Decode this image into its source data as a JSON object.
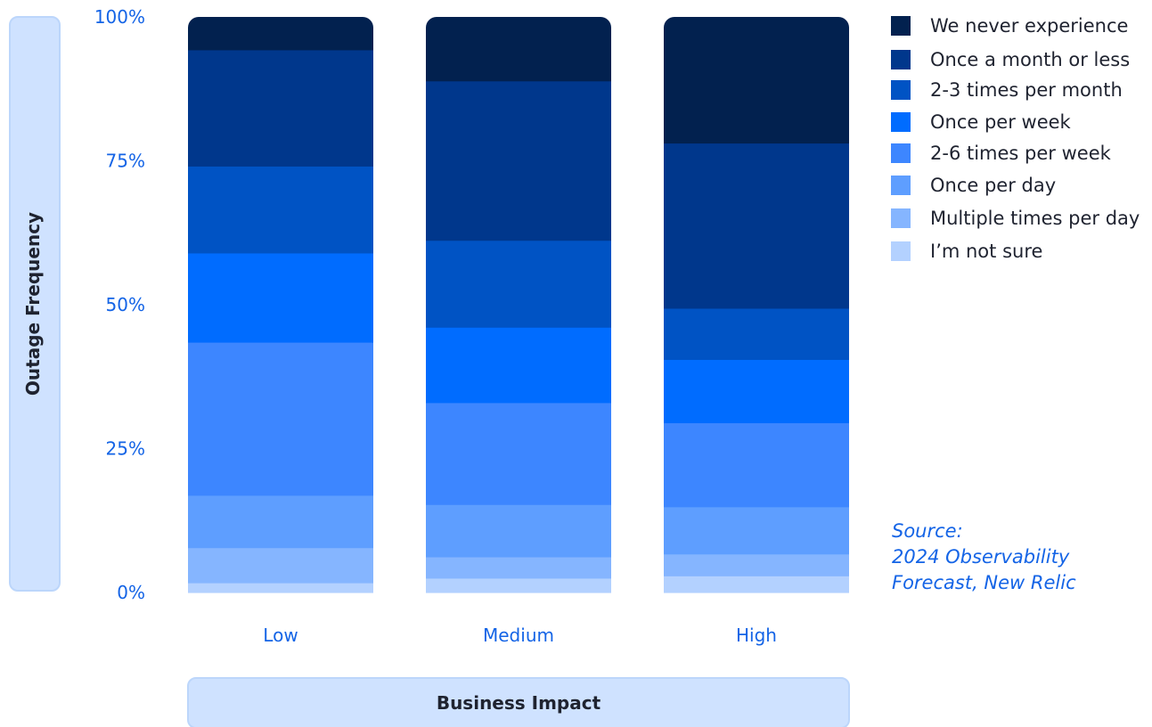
{
  "chart_data": {
    "type": "bar",
    "stacked": true,
    "percent": true,
    "xlabel": "Business Impact",
    "ylabel": "Outage Frequency",
    "categories": [
      "Low",
      "Medium",
      "High"
    ],
    "ylim": [
      0,
      100
    ],
    "yticks": [
      "0%",
      "25%",
      "50%",
      "75%",
      "100%"
    ],
    "ytick_values": [
      0,
      25,
      50,
      75,
      100
    ],
    "legend_position": "right",
    "series": [
      {
        "name": "I’m not sure",
        "color": "#b3d1ff",
        "values": [
          1.7,
          2.5,
          2.9
        ]
      },
      {
        "name": "Multiple times per day",
        "color": "#85b5ff",
        "values": [
          6.1,
          3.7,
          3.8
        ]
      },
      {
        "name": "Once per day",
        "color": "#5e9eff",
        "values": [
          9.1,
          9.1,
          8.2
        ]
      },
      {
        "name": "2-6 times per week",
        "color": "#3d86ff",
        "values": [
          26.6,
          17.7,
          14.6
        ]
      },
      {
        "name": "Once per week",
        "color": "#006cff",
        "values": [
          15.5,
          13.1,
          11.0
        ]
      },
      {
        "name": "2-3 times per month",
        "color": "#0053c4",
        "values": [
          15.1,
          15.1,
          8.9
        ]
      },
      {
        "name": "Once a month or less",
        "color": "#00378c",
        "values": [
          20.2,
          27.7,
          28.7
        ]
      },
      {
        "name": "We never experience",
        "color": "#02214f",
        "values": [
          5.7,
          11.1,
          21.9
        ]
      }
    ]
  },
  "legend_order": [
    7,
    6,
    5,
    4,
    3,
    2,
    1,
    0
  ],
  "source": {
    "line1": "Source:",
    "line2": "2024 Observability",
    "line3": "Forecast, New Relic"
  }
}
